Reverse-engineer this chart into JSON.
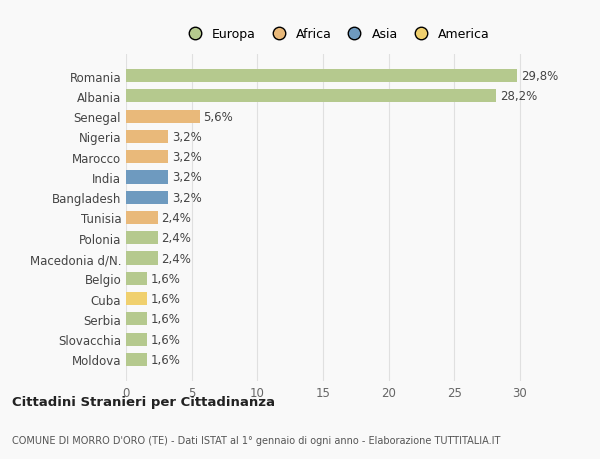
{
  "countries": [
    "Romania",
    "Albania",
    "Senegal",
    "Nigeria",
    "Marocco",
    "India",
    "Bangladesh",
    "Tunisia",
    "Polonia",
    "Macedonia d/N.",
    "Belgio",
    "Cuba",
    "Serbia",
    "Slovacchia",
    "Moldova"
  ],
  "values": [
    29.8,
    28.2,
    5.6,
    3.2,
    3.2,
    3.2,
    3.2,
    2.4,
    2.4,
    2.4,
    1.6,
    1.6,
    1.6,
    1.6,
    1.6
  ],
  "labels": [
    "29,8%",
    "28,2%",
    "5,6%",
    "3,2%",
    "3,2%",
    "3,2%",
    "3,2%",
    "2,4%",
    "2,4%",
    "2,4%",
    "1,6%",
    "1,6%",
    "1,6%",
    "1,6%",
    "1,6%"
  ],
  "continents": [
    "Europa",
    "Europa",
    "Africa",
    "Africa",
    "Africa",
    "Asia",
    "Asia",
    "Africa",
    "Europa",
    "Europa",
    "Europa",
    "America",
    "Europa",
    "Europa",
    "Europa"
  ],
  "colors": {
    "Europa": "#b5c98e",
    "Africa": "#e9b97a",
    "Asia": "#6e9abf",
    "America": "#f0d06e"
  },
  "title": "Cittadini Stranieri per Cittadinanza",
  "subtitle": "COMUNE DI MORRO D'ORO (TE) - Dati ISTAT al 1° gennaio di ogni anno - Elaborazione TUTTITALIA.IT",
  "xlim": [
    0,
    32
  ],
  "xticks": [
    0,
    5,
    10,
    15,
    20,
    25,
    30
  ],
  "background_color": "#f9f9f9",
  "grid_color": "#e0e0e0",
  "legend_order": [
    "Europa",
    "Africa",
    "Asia",
    "America"
  ]
}
